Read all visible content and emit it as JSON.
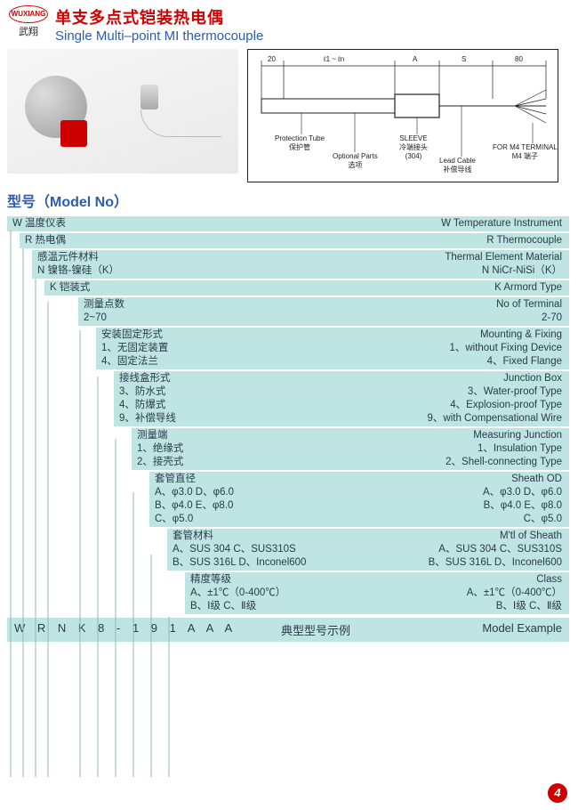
{
  "colors": {
    "brand_red": "#d00000",
    "brand_blue": "#2a5db0",
    "panel_bg": "#bee5e1",
    "text": "#2a3a4a",
    "page_bg": "#ffffff"
  },
  "logo": {
    "text_en": "WUXIANG",
    "text_cn": "武翔"
  },
  "title": {
    "cn": "单支多点式铠装热电偶",
    "en": "Single Multi–point MI thermocouple"
  },
  "diagram": {
    "dim_left": "20",
    "dim_span": "ℓ1 ~ ℓn",
    "dim_a": "A",
    "dim_s": "S",
    "dim_right": "80",
    "labels": {
      "protection_tube_en": "Protection Tube",
      "protection_tube_cn": "保护管",
      "optional_parts_en": "Optional Parts",
      "optional_parts_cn": "选项",
      "sleeve_en": "SLEEVE",
      "sleeve_cn": "冷端接头",
      "sleeve_mat": "(304)",
      "lead_cable_en": "Lead Cable",
      "lead_cable_cn": "补偿导线",
      "terminal_en": "FOR M4 TERMINAL",
      "terminal_cn": "M4 端子"
    }
  },
  "model_heading": "型号（Model No）",
  "specs": [
    {
      "indent": 0,
      "left": [
        "W 温度仪表"
      ],
      "right": [
        "W  Temperature Instrument"
      ]
    },
    {
      "indent": 1,
      "left": [
        "R 热电偶"
      ],
      "right": [
        "R  Thermocouple"
      ]
    },
    {
      "indent": 2,
      "left": [
        "感温元件材料",
        "N 镍铬-镍硅（K）"
      ],
      "right": [
        "Thermal Element Material",
        "N  NiCr-NiSi（K）"
      ]
    },
    {
      "indent": 3,
      "left": [
        "K 铠装式"
      ],
      "right": [
        "K  Armord Type"
      ]
    },
    {
      "indent": 4,
      "left": [
        "测量点数",
        "2~70"
      ],
      "right": [
        "No of Terminal",
        "2-70"
      ]
    },
    {
      "indent": 5,
      "left": [
        "安装固定形式",
        "1、无固定装置",
        "4、固定法兰"
      ],
      "right": [
        "Mounting & Fixing",
        "1、without Fixing Device",
        "4、Fixed Flange"
      ]
    },
    {
      "indent": 6,
      "left": [
        "接线盒形式",
        "3、防水式",
        "4、防爆式",
        "9、补偿导线"
      ],
      "right": [
        "Junction Box",
        "3、Water-proof Type",
        "4、Explosion-proof Type",
        "9、with Compensational Wire"
      ]
    },
    {
      "indent": 7,
      "left": [
        "测量端",
        "1、绝缘式",
        "2、接壳式"
      ],
      "right": [
        "Measuring Junction",
        "1、Insulation Type",
        "2、Shell-connecting Type"
      ]
    },
    {
      "indent": 8,
      "left": [
        "套管直径",
        "A、φ3.0    D、φ6.0",
        "B、φ4.0    E、φ8.0",
        "C、φ5.0"
      ],
      "right": [
        "Sheath OD",
        "A、φ3.0    D、φ6.0",
        "B、φ4.0    E、φ8.0",
        "C、φ5.0"
      ]
    },
    {
      "indent": 9,
      "left": [
        "套管材料",
        "A、SUS 304   C、SUS310S",
        "B、SUS 316L  D、Inconel600"
      ],
      "right": [
        "M'tl of Sheath",
        "A、SUS 304   C、SUS310S",
        "B、SUS 316L  D、Inconel600"
      ]
    },
    {
      "indent": 10,
      "left": [
        "精度等级",
        "A、±1℃（0-400℃）",
        "B、Ⅰ级   C、Ⅱ级"
      ],
      "right": [
        "Class",
        "A、±1℃（0-400℃）",
        "B、Ⅰ级   C、Ⅱ级"
      ]
    }
  ],
  "example": {
    "codes": "W R N K 8 - 1 9 1 A A A",
    "cn": "典型型号示例",
    "en": "Model Example"
  },
  "page_number": "4"
}
